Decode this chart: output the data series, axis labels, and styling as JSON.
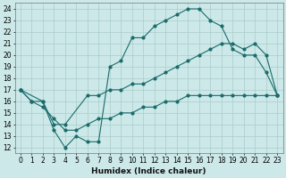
{
  "xlabel": "Humidex (Indice chaleur)",
  "xlim": [
    -0.5,
    23.5
  ],
  "ylim": [
    11.5,
    24.5
  ],
  "background_color": "#cce8e8",
  "grid_color": "#aacccc",
  "line_color": "#1a6b6b",
  "line1_x": [
    0,
    1,
    2,
    3,
    4,
    5,
    6,
    7,
    8,
    9,
    10,
    11,
    12,
    13,
    14,
    15,
    16,
    17,
    18,
    19,
    20,
    21,
    22,
    23
  ],
  "line1_y": [
    17.0,
    16.0,
    16.0,
    13.5,
    12.0,
    13.0,
    12.5,
    12.5,
    19.0,
    19.5,
    21.5,
    21.5,
    22.5,
    23.0,
    23.5,
    24.0,
    24.0,
    23.0,
    22.5,
    20.5,
    20.0,
    20.0,
    18.5,
    16.5
  ],
  "line2_x": [
    0,
    2,
    3,
    4,
    6,
    7,
    8,
    9,
    10,
    11,
    12,
    13,
    14,
    15,
    16,
    17,
    18,
    19,
    20,
    21,
    22,
    23
  ],
  "line2_y": [
    17.0,
    16.0,
    14.0,
    14.0,
    16.5,
    16.5,
    17.0,
    17.0,
    17.5,
    17.5,
    18.0,
    18.5,
    19.0,
    19.5,
    20.0,
    20.5,
    21.0,
    21.0,
    20.5,
    21.0,
    20.0,
    16.5
  ],
  "line3_x": [
    0,
    1,
    2,
    3,
    4,
    5,
    6,
    7,
    8,
    9,
    10,
    11,
    12,
    13,
    14,
    15,
    16,
    17,
    18,
    19,
    20,
    21,
    22,
    23
  ],
  "line3_y": [
    17.0,
    16.0,
    15.5,
    14.5,
    13.5,
    13.5,
    14.0,
    14.5,
    14.5,
    15.0,
    15.0,
    15.5,
    15.5,
    16.0,
    16.0,
    16.5,
    16.5,
    16.5,
    16.5,
    16.5,
    16.5,
    16.5,
    16.5,
    16.5
  ],
  "xticks": [
    0,
    1,
    2,
    3,
    4,
    5,
    6,
    7,
    8,
    9,
    10,
    11,
    12,
    13,
    14,
    15,
    16,
    17,
    18,
    19,
    20,
    21,
    22,
    23
  ],
  "yticks": [
    12,
    13,
    14,
    15,
    16,
    17,
    18,
    19,
    20,
    21,
    22,
    23,
    24
  ],
  "fontsize_ticks": 5.5,
  "fontsize_label": 6.5
}
